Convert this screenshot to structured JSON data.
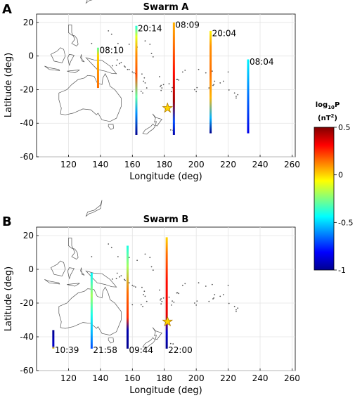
{
  "figure": {
    "panel_a_letter": "A",
    "panel_b_letter": "B",
    "colorbar_label_main": "log",
    "colorbar_label_sub": "10",
    "colorbar_label_tail": "P",
    "colorbar_unit_open": "(nT",
    "colorbar_unit_sup": "2",
    "colorbar_unit_close": ")",
    "colorbar_ticks": [
      "0.5",
      "0",
      "-0.5",
      "-1"
    ],
    "colorbar_tick_values": [
      0.5,
      0,
      -0.5,
      -1
    ],
    "colorbar_range": [
      -1,
      0.5
    ],
    "colormap": [
      "#00008f",
      "#0000ff",
      "#0080ff",
      "#00ffff",
      "#80ff80",
      "#ffff00",
      "#ff8000",
      "#ff0000",
      "#800000"
    ],
    "star_color": "#ffd400",
    "coast_color": "#555555"
  },
  "chart_data": [
    {
      "type": "line",
      "title": "Swarm A",
      "xlabel": "Longitude (deg)",
      "ylabel": "Latitude (deg)",
      "xlim": [
        100,
        262
      ],
      "ylim": [
        -60,
        25
      ],
      "xticks": [
        "120",
        "140",
        "160",
        "180",
        "200",
        "220",
        "240",
        "260"
      ],
      "xtick_values": [
        120,
        140,
        160,
        180,
        200,
        220,
        240,
        260
      ],
      "yticks": [
        "20",
        "0",
        "-20",
        "-40",
        "-60"
      ],
      "ytick_values": [
        20,
        0,
        -20,
        -40,
        -60
      ],
      "grid": true,
      "star": {
        "lon": 182,
        "lat": -31
      },
      "series": [
        {
          "name": "08:10",
          "lon": 138.5,
          "lat_start": -19,
          "lat_end": 5,
          "label_lat": 3.5,
          "color_stops": [
            [
              0,
              0.15
            ],
            [
              0.4,
              0.1
            ],
            [
              0.8,
              0.0
            ],
            [
              1,
              -0.3
            ]
          ]
        },
        {
          "name": "20:14",
          "lon": 162.5,
          "lat_start": -47,
          "lat_end": 18,
          "label_lat": 16.5,
          "color_stops": [
            [
              0,
              -1.0
            ],
            [
              0.2,
              -0.6
            ],
            [
              0.35,
              -0.3
            ],
            [
              0.55,
              0.2
            ],
            [
              0.75,
              0.1
            ],
            [
              0.9,
              -0.1
            ],
            [
              1,
              -0.4
            ]
          ]
        },
        {
          "name": "08:09",
          "lon": 186,
          "lat_start": -47,
          "lat_end": 20,
          "label_lat": 18.5,
          "color_stops": [
            [
              0,
              -0.95
            ],
            [
              0.12,
              -0.7
            ],
            [
              0.3,
              0.45
            ],
            [
              0.55,
              0.3
            ],
            [
              0.8,
              0.15
            ],
            [
              1,
              0.05
            ]
          ]
        },
        {
          "name": "20:04",
          "lon": 209,
          "lat_start": -46,
          "lat_end": 15,
          "label_lat": 13.5,
          "color_stops": [
            [
              0,
              -1.0
            ],
            [
              0.15,
              -0.55
            ],
            [
              0.35,
              0.05
            ],
            [
              0.6,
              0.15
            ],
            [
              0.85,
              0.1
            ],
            [
              1,
              -0.05
            ]
          ]
        },
        {
          "name": "08:04",
          "lon": 232.5,
          "lat_start": -46,
          "lat_end": -2,
          "label_lat": -3.5,
          "color_stops": [
            [
              0,
              -0.85
            ],
            [
              0.5,
              -0.65
            ],
            [
              1,
              -0.45
            ]
          ]
        }
      ]
    },
    {
      "type": "line",
      "title": "Swarm B",
      "xlabel": "Longitude (deg)",
      "ylabel": "Latitude (deg)",
      "xlim": [
        100,
        262
      ],
      "ylim": [
        -60,
        25
      ],
      "xticks": [
        "120",
        "140",
        "160",
        "180",
        "200",
        "220",
        "240",
        "260"
      ],
      "xtick_values": [
        120,
        140,
        160,
        180,
        200,
        220,
        240,
        260
      ],
      "yticks": [
        "20",
        "0",
        "-20",
        "-40",
        "-60"
      ],
      "ytick_values": [
        20,
        0,
        -20,
        -40,
        -60
      ],
      "grid": true,
      "star": {
        "lon": 182,
        "lat": -31
      },
      "series": [
        {
          "name": "10:39",
          "lon": 110.5,
          "lat_start": -47,
          "lat_end": -36,
          "label_lat": -48,
          "color_stops": [
            [
              0,
              0.0
            ],
            [
              0.15,
              -0.9
            ],
            [
              1,
              -1.0
            ]
          ]
        },
        {
          "name": "21:58",
          "lon": 134.5,
          "lat_start": -47,
          "lat_end": -2,
          "label_lat": -48,
          "color_stops": [
            [
              0,
              -0.7
            ],
            [
              0.2,
              -0.55
            ],
            [
              0.45,
              -0.4
            ],
            [
              0.7,
              -0.2
            ],
            [
              1,
              -0.45
            ]
          ]
        },
        {
          "name": "09:44",
          "lon": 157,
          "lat_start": -47,
          "lat_end": 14,
          "label_lat": -48,
          "color_stops": [
            [
              0,
              -1.0
            ],
            [
              0.18,
              -0.95
            ],
            [
              0.3,
              0.25
            ],
            [
              0.55,
              0.15
            ],
            [
              0.8,
              -0.2
            ],
            [
              1,
              -0.4
            ]
          ]
        },
        {
          "name": "22:00",
          "lon": 181.5,
          "lat_start": -47,
          "lat_end": 19,
          "label_lat": -48,
          "color_stops": [
            [
              0,
              -1.0
            ],
            [
              0.15,
              -0.9
            ],
            [
              0.3,
              0.35
            ],
            [
              0.6,
              0.3
            ],
            [
              0.85,
              0.15
            ],
            [
              1,
              0.0
            ]
          ]
        }
      ]
    }
  ]
}
